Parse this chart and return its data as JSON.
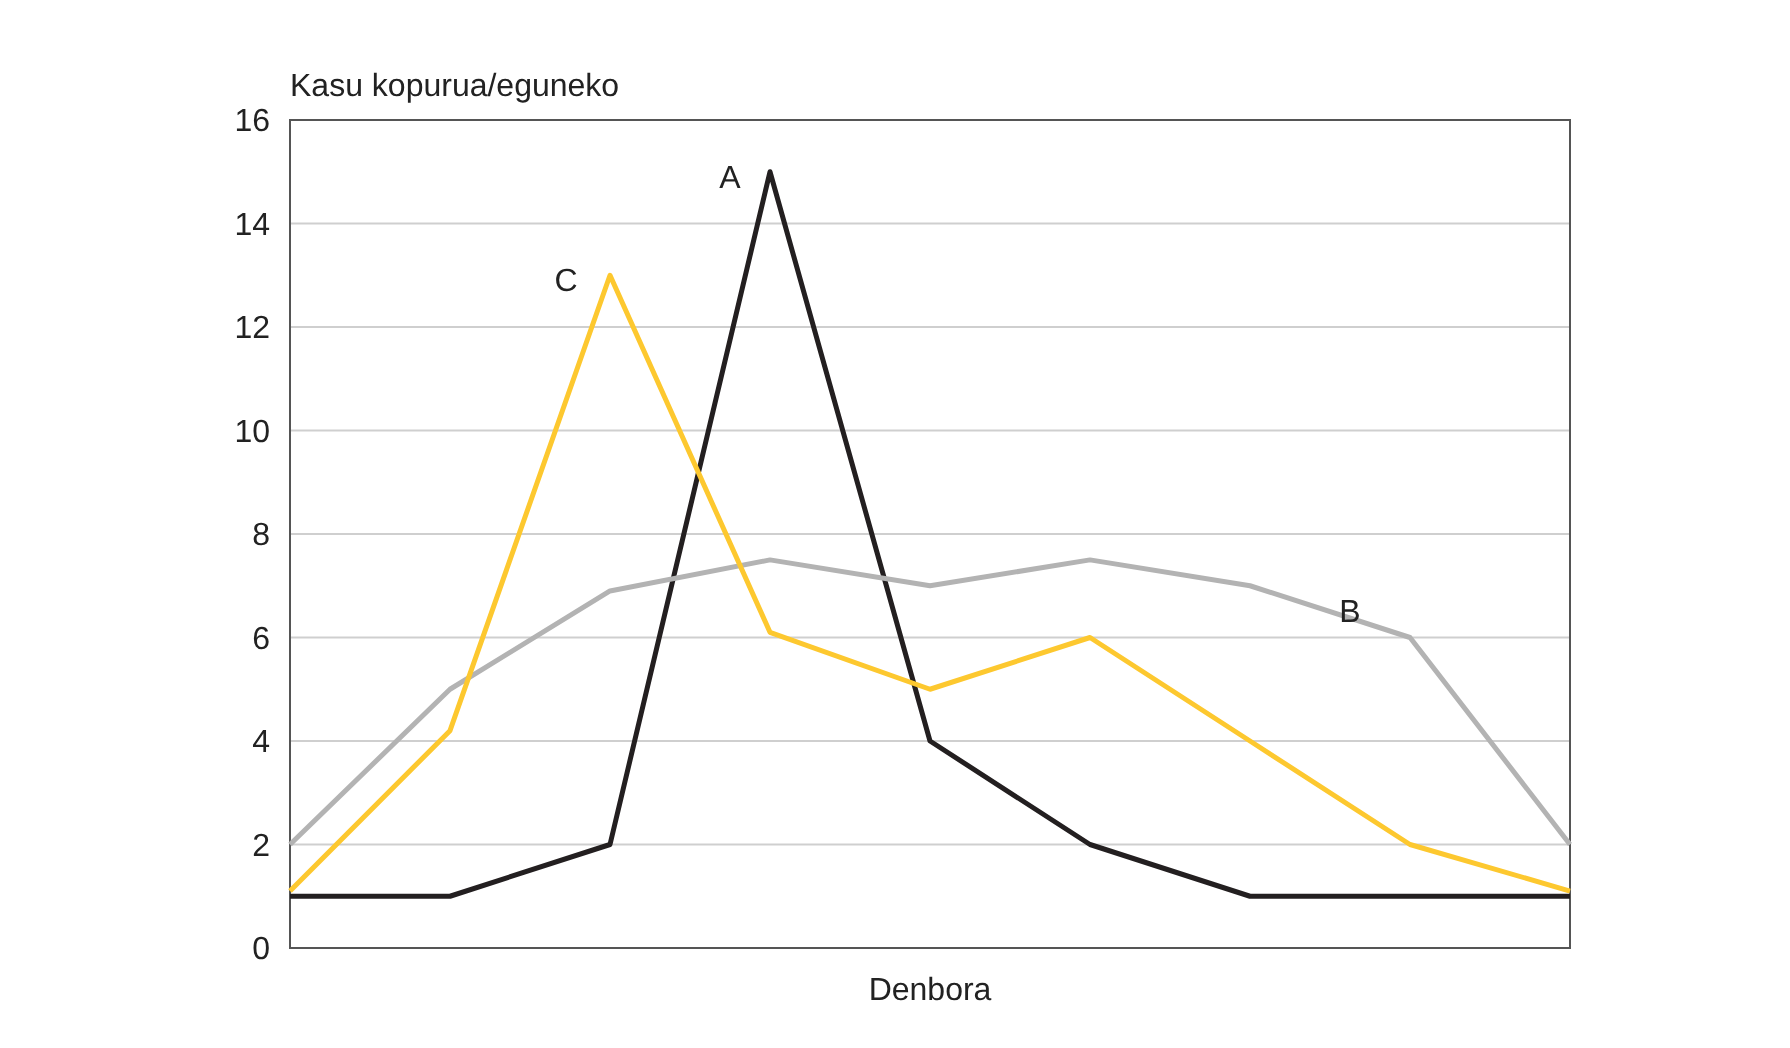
{
  "chart_data": {
    "type": "line",
    "ylabel": "Kasu kopurua/eguneko",
    "xlabel": "Denbora",
    "categories": [
      null,
      null,
      null,
      null,
      null,
      null,
      null,
      null,
      null
    ],
    "series": [
      {
        "name": "A",
        "color": "#231f20",
        "values": [
          1,
          1,
          2,
          15,
          4,
          2,
          1,
          1,
          1
        ]
      },
      {
        "name": "B",
        "color": "#b3b3b3",
        "values": [
          2,
          5,
          6.9,
          7.5,
          7,
          7.5,
          7,
          6,
          2
        ]
      },
      {
        "name": "C",
        "color": "#fdc82f",
        "values": [
          1.1,
          4.2,
          13,
          6.1,
          5,
          6,
          4,
          2,
          1.1
        ]
      }
    ],
    "ylim": [
      0,
      16
    ],
    "yticks": [
      0,
      2,
      4,
      6,
      8,
      10,
      12,
      14,
      16
    ],
    "grid": "y",
    "legend": false,
    "marker": "none",
    "line_style": "solid"
  }
}
